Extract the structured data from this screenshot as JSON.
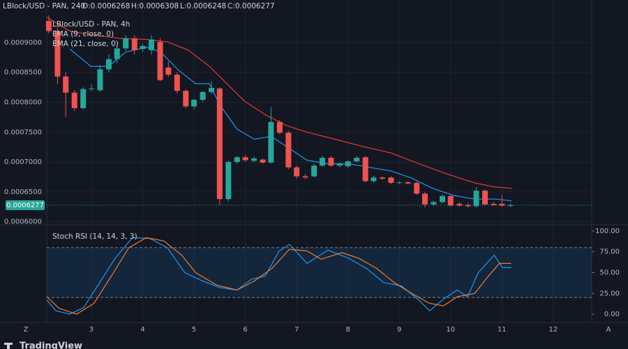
{
  "header": {
    "symbol": "LBlock/USD - PAN, 240",
    "open": "O:0.0006268",
    "high": "H:0.0006308",
    "low": "L:0.0006248",
    "close": "C:0.0006277"
  },
  "footer": {
    "left": "Z",
    "right": "A",
    "brand": "TradingView"
  },
  "chart_data": [
    {
      "type": "candlestick",
      "title": "LBlock/USD - PAN, 4h",
      "up_color": "#26a69a",
      "down_color": "#ef5350",
      "grid": true,
      "x": [
        2.17,
        2.34,
        2.5,
        2.67,
        2.84,
        3.0,
        3.17,
        3.34,
        3.5,
        3.67,
        3.84,
        4.0,
        4.17,
        4.34,
        4.5,
        4.67,
        4.84,
        5.0,
        5.17,
        5.34,
        5.5,
        5.67,
        5.84,
        6.0,
        6.17,
        6.34,
        6.5,
        6.67,
        6.84,
        7.0,
        7.17,
        7.34,
        7.5,
        7.67,
        7.84,
        8.0,
        8.17,
        8.34,
        8.5,
        8.67,
        8.84,
        9.0,
        9.17,
        9.34,
        9.5,
        9.67,
        9.84,
        10.0,
        10.17,
        10.34,
        10.5,
        10.67,
        10.84,
        11.0,
        11.17
      ],
      "open": [
        0.000936,
        0.000919,
        0.000843,
        0.000816,
        0.00079,
        0.000822,
        0.00082,
        0.000855,
        0.000872,
        0.00089,
        0.000907,
        0.000889,
        0.000887,
        0.000901,
        0.000858,
        0.000846,
        0.000819,
        0.000793,
        0.000804,
        0.000817,
        0.000823,
        0.000638,
        0.0007,
        0.000708,
        0.000702,
        0.000704,
        0.000699,
        0.000767,
        0.000749,
        0.000691,
        0.000676,
        0.000676,
        0.000694,
        0.000707,
        0.000694,
        0.000693,
        0.000701,
        0.000708,
        0.000668,
        0.000674,
        0.000674,
        0.000665,
        0.000666,
        0.000665,
        0.000647,
        0.000629,
        0.000633,
        0.000643,
        0.00063,
        0.000628,
        0.000626,
        0.000652,
        0.00063,
        0.00063,
        0.0006268
      ],
      "high": [
        0.000945,
        0.000925,
        0.00085,
        0.00082,
        0.000825,
        0.00083,
        0.000862,
        0.00088,
        0.000895,
        0.000912,
        0.000912,
        0.000898,
        0.000912,
        0.000908,
        0.000868,
        0.00085,
        0.000822,
        0.000806,
        0.000819,
        0.000835,
        0.000825,
        0.000702,
        0.00071,
        0.000712,
        0.000709,
        0.000706,
        0.000792,
        0.00077,
        0.000752,
        0.000694,
        0.00068,
        0.000697,
        0.00071,
        0.00071,
        0.000699,
        0.000703,
        0.00071,
        0.00071,
        0.000677,
        0.000676,
        0.000676,
        0.000668,
        0.000668,
        0.000667,
        0.00065,
        0.000635,
        0.000646,
        0.000645,
        0.000633,
        0.000632,
        0.000658,
        0.000654,
        0.000633,
        0.000645,
        0.0006308
      ],
      "low": [
        0.000915,
        0.00083,
        0.000775,
        0.000785,
        0.000788,
        0.000818,
        0.000818,
        0.00085,
        0.000865,
        0.000886,
        0.00088,
        0.000884,
        0.00088,
        0.000835,
        0.000842,
        0.000815,
        0.00079,
        0.000788,
        0.0008,
        0.000814,
        0.000628,
        0.000634,
        0.000697,
        0.0007,
        0.000699,
        0.000697,
        0.000697,
        0.000746,
        0.000688,
        0.000672,
        0.000671,
        0.000674,
        0.000692,
        0.000692,
        0.000691,
        0.00069,
        0.000699,
        0.000666,
        0.000666,
        0.00067,
        0.000663,
        0.000663,
        0.000662,
        0.000645,
        0.000624,
        0.000627,
        0.000631,
        0.000625,
        0.000625,
        0.000624,
        0.000624,
        0.000627,
        0.000627,
        0.000625,
        0.0006248
      ],
      "close": [
        0.000919,
        0.000843,
        0.000816,
        0.00079,
        0.000822,
        0.000823,
        0.000855,
        0.000872,
        0.00089,
        0.000907,
        0.000887,
        0.000894,
        0.000905,
        0.000837,
        0.000846,
        0.000819,
        0.000793,
        0.000804,
        0.000817,
        0.000824,
        0.000638,
        0.0007,
        0.000708,
        0.000703,
        0.000706,
        0.000699,
        0.000767,
        0.000749,
        0.000691,
        0.000676,
        0.000674,
        0.000694,
        0.000707,
        0.000694,
        0.000697,
        0.000701,
        0.000707,
        0.000668,
        0.000674,
        0.000672,
        0.000665,
        0.000666,
        0.000664,
        0.000647,
        0.000629,
        0.000633,
        0.000643,
        0.000627,
        0.000627,
        0.000626,
        0.000652,
        0.000629,
        0.000628,
        0.000627,
        0.0006277
      ],
      "series": [
        {
          "name": "EMA (9, close, 0)",
          "color": "#2196f3",
          "x": [
            2.58,
            2.99,
            3.33,
            3.67,
            4.07,
            4.35,
            4.69,
            5.03,
            5.3,
            5.5,
            5.84,
            6.18,
            6.5,
            6.8,
            7.2,
            7.61,
            8.02,
            8.43,
            8.84,
            9.24,
            9.65,
            10.06,
            10.47,
            10.87,
            11.19
          ],
          "values": [
            0.000889,
            0.00086,
            0.00086,
            0.000884,
            0.000892,
            0.000884,
            0.000854,
            0.000831,
            0.000831,
            0.000796,
            0.000755,
            0.000738,
            0.000743,
            0.000726,
            0.000703,
            0.000697,
            0.000697,
            0.000691,
            0.000685,
            0.000673,
            0.000656,
            0.000644,
            0.000638,
            0.000638,
            0.000635
          ]
        },
        {
          "name": "EMA (21, close, 0)",
          "color": "#e53935",
          "x": [
            2.13,
            2.58,
            2.99,
            3.53,
            4.07,
            4.48,
            4.89,
            5.3,
            5.57,
            5.98,
            6.39,
            6.8,
            7.2,
            7.75,
            8.29,
            8.84,
            9.38,
            9.93,
            10.47,
            10.87,
            11.19
          ],
          "values": [
            0.000942,
            0.000919,
            0.000913,
            0.000907,
            0.000905,
            0.000901,
            0.000887,
            0.00086,
            0.000837,
            0.000802,
            0.000779,
            0.000761,
            0.00075,
            0.000738,
            0.000726,
            0.000715,
            0.000697,
            0.00068,
            0.000665,
            0.000658,
            0.000656
          ]
        }
      ],
      "current_price": {
        "value": 0.0006277,
        "label": "0.0006277"
      },
      "xlim": [
        2.13,
        12.75
      ],
      "ylim": [
        0.000595,
        0.000971
      ],
      "yticks": [
        {
          "value": 0.0006,
          "label": "0.0006000"
        },
        {
          "value": 0.00065,
          "label": "0.0006500"
        },
        {
          "value": 0.0007,
          "label": "0.0007000"
        },
        {
          "value": 0.00075,
          "label": "0.0007500"
        },
        {
          "value": 0.0008,
          "label": "0.0008000"
        },
        {
          "value": 0.00085,
          "label": "0.0008500"
        },
        {
          "value": 0.0009,
          "label": "0.0009000"
        }
      ]
    },
    {
      "type": "line",
      "title": "Stoch RSI (14, 14, 3, 3)",
      "band": [
        20,
        80
      ],
      "grid": true,
      "series": [
        {
          "color": "#2196f3",
          "x": [
            2.13,
            2.31,
            2.58,
            2.85,
            3.12,
            3.46,
            3.8,
            4.14,
            4.48,
            4.82,
            5.16,
            5.5,
            5.84,
            6.12,
            6.39,
            6.66,
            6.86,
            7.2,
            7.61,
            8.02,
            8.36,
            8.7,
            9.04,
            9.38,
            9.59,
            9.86,
            10.13,
            10.33,
            10.54,
            10.85,
            11.01,
            11.18
          ],
          "values": [
            17,
            4,
            0,
            8,
            34,
            67,
            92,
            91,
            80,
            50,
            40,
            32,
            29,
            42,
            46,
            76,
            84,
            61,
            77,
            67,
            55,
            38,
            34,
            17,
            4,
            18,
            29,
            21,
            50,
            71,
            56,
            56
          ]
        },
        {
          "color": "#f57c2a",
          "x": [
            2.13,
            2.37,
            2.71,
            3.05,
            3.39,
            3.73,
            4.07,
            4.41,
            4.76,
            5.03,
            5.44,
            5.84,
            6.18,
            6.52,
            6.86,
            7.2,
            7.48,
            7.88,
            8.22,
            8.56,
            8.9,
            9.24,
            9.59,
            9.86,
            10.13,
            10.47,
            10.74,
            10.95,
            11.18
          ],
          "values": [
            21,
            7,
            0,
            13,
            46,
            80,
            92,
            88,
            71,
            50,
            35,
            29,
            40,
            55,
            78,
            76,
            66,
            74,
            67,
            55,
            38,
            25,
            13,
            10,
            21,
            25,
            46,
            61,
            61
          ]
        }
      ],
      "xlim": [
        2.13,
        12.75
      ],
      "ylim": [
        -10,
        107.5
      ],
      "xticks": [
        3,
        4,
        5,
        6,
        7,
        8,
        9,
        10,
        11,
        12
      ],
      "yticks": [
        {
          "value": 0,
          "label": "0.00"
        },
        {
          "value": 25,
          "label": "25.00"
        },
        {
          "value": 50,
          "label": "50.00"
        },
        {
          "value": 75,
          "label": "75.00"
        },
        {
          "value": 100,
          "label": "100.00"
        }
      ]
    }
  ]
}
